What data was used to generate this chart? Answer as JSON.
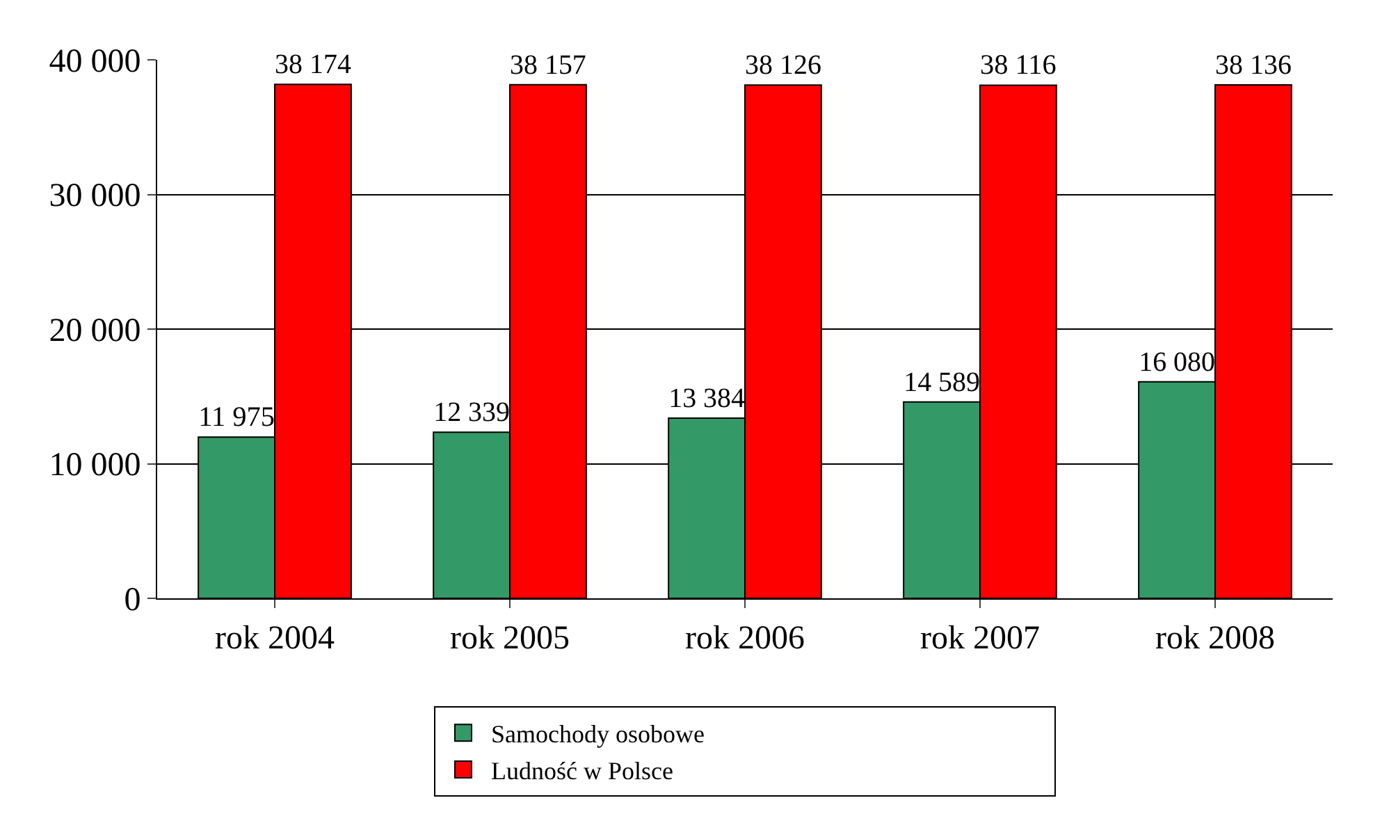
{
  "chart_data": {
    "type": "bar",
    "categories": [
      "rok 2004",
      "rok 2005",
      "rok 2006",
      "rok 2007",
      "rok 2008"
    ],
    "series": [
      {
        "name": "Samochody osobowe",
        "color": "#339966",
        "values": [
          11975,
          12339,
          13384,
          14589,
          16080
        ],
        "value_labels": [
          "11 975",
          "12 339",
          "13 384",
          "14 589",
          "16 080"
        ]
      },
      {
        "name": "Ludność w Polsce",
        "color": "#ff0000",
        "values": [
          38174,
          38157,
          38126,
          38116,
          38136
        ],
        "value_labels": [
          "38 174",
          "38 157",
          "38 126",
          "38 116",
          "38 136"
        ]
      }
    ],
    "ylim": [
      0,
      40000
    ],
    "yticks": [
      {
        "value": 0,
        "label": "0"
      },
      {
        "value": 10000,
        "label": "10 000"
      },
      {
        "value": 20000,
        "label": "20 000"
      },
      {
        "value": 30000,
        "label": "30 000"
      },
      {
        "value": 40000,
        "label": "40 000"
      }
    ],
    "grid": "y",
    "legend": "bottom"
  }
}
